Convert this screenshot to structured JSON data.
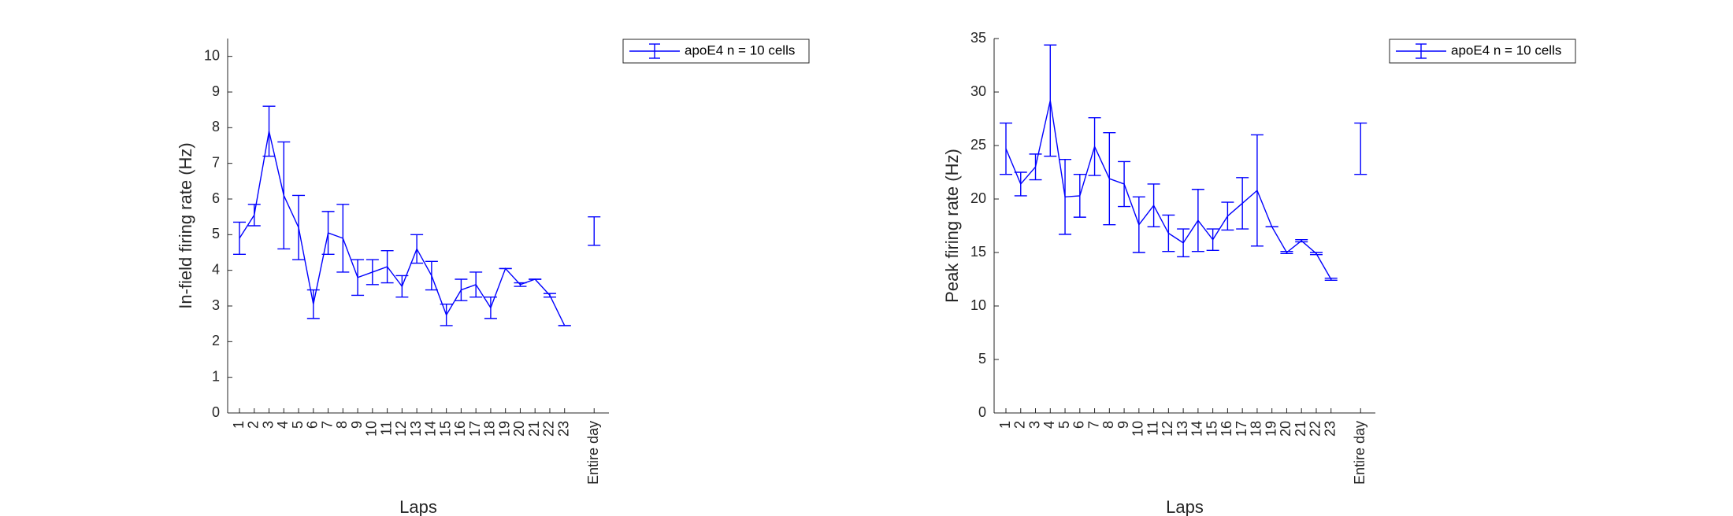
{
  "chart_data": [
    {
      "type": "line",
      "xlabel": "Laps",
      "ylabel": "In-field firing rate (Hz)",
      "categories": [
        "1",
        "2",
        "3",
        "4",
        "5",
        "6",
        "7",
        "8",
        "9",
        "10",
        "11",
        "12",
        "13",
        "14",
        "15",
        "16",
        "17",
        "18",
        "19",
        "20",
        "21",
        "22",
        "23",
        null,
        "Entire day"
      ],
      "ylim": [
        0,
        10.5
      ],
      "yticks": [
        0,
        1,
        2,
        3,
        4,
        5,
        6,
        7,
        8,
        9,
        10
      ],
      "legend": "northeast-outside",
      "series": [
        {
          "name": "apoE4 n = 10 cells",
          "color": "#0000ff",
          "values": [
            4.9,
            5.55,
            7.9,
            6.1,
            5.2,
            3.05,
            5.05,
            4.9,
            3.8,
            3.95,
            4.1,
            3.55,
            4.6,
            3.85,
            2.75,
            3.45,
            3.6,
            2.95,
            4.05,
            3.6,
            3.75,
            3.3,
            2.45,
            null,
            5.1
          ],
          "errors": [
            0.45,
            0.3,
            0.7,
            1.5,
            0.9,
            0.4,
            0.6,
            0.95,
            0.5,
            0.35,
            0.45,
            0.3,
            0.4,
            0.4,
            0.3,
            0.3,
            0.35,
            0.3,
            0,
            0.05,
            0,
            0.05,
            0,
            null,
            0.4
          ]
        }
      ]
    },
    {
      "type": "line",
      "xlabel": "Laps",
      "ylabel": "Peak firing rate (Hz)",
      "categories": [
        "1",
        "2",
        "3",
        "4",
        "5",
        "6",
        "7",
        "8",
        "9",
        "10",
        "11",
        "12",
        "13",
        "14",
        "15",
        "16",
        "17",
        "18",
        "19",
        "20",
        "21",
        "22",
        "23",
        null,
        "Entire day"
      ],
      "ylim": [
        0,
        35
      ],
      "yticks": [
        0,
        5,
        10,
        15,
        20,
        25,
        30,
        35
      ],
      "legend": "northeast-outside",
      "series": [
        {
          "name": "apoE4 n = 10 cells",
          "color": "#0000ff",
          "values": [
            24.7,
            21.4,
            23.0,
            29.2,
            20.2,
            20.3,
            24.9,
            21.9,
            21.4,
            17.6,
            19.4,
            16.8,
            15.9,
            18.0,
            16.2,
            18.4,
            19.6,
            20.8,
            17.4,
            15.0,
            16.1,
            14.9,
            12.5,
            null,
            24.7
          ],
          "errors": [
            2.4,
            1.1,
            1.2,
            5.2,
            3.5,
            2.0,
            2.7,
            4.3,
            2.1,
            2.6,
            2.0,
            1.7,
            1.3,
            2.9,
            1.0,
            1.3,
            2.4,
            5.2,
            0,
            0.1,
            0.1,
            0.1,
            0.1,
            null,
            2.4
          ]
        }
      ]
    }
  ]
}
